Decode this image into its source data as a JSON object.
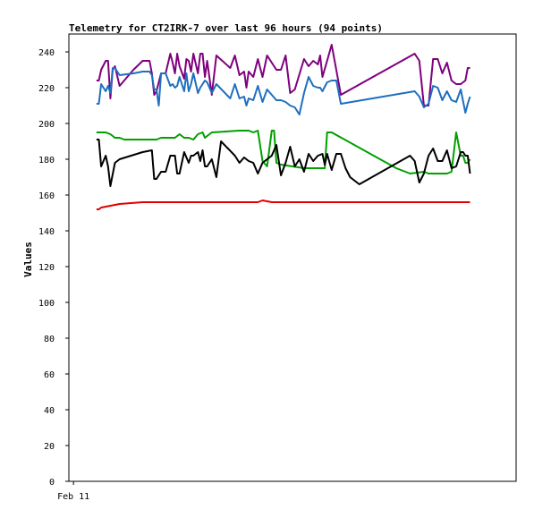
{
  "chart_data": {
    "type": "line",
    "title": "Telemetry for CT2IRK-7 over last 96 hours (94 points)",
    "ylabel": "Values",
    "xlabel": "",
    "ylim": [
      0,
      250
    ],
    "yticks": [
      0,
      20,
      40,
      60,
      80,
      100,
      120,
      140,
      160,
      180,
      200,
      220,
      240
    ],
    "xticks": [
      {
        "label": "Feb 11",
        "x": 0
      }
    ],
    "xlim": [
      -1,
      96
    ],
    "grid": false,
    "series": [
      {
        "color": "#7f007f",
        "points": [
          [
            5,
            224
          ],
          [
            5.5,
            224
          ],
          [
            6,
            230
          ],
          [
            7,
            235
          ],
          [
            7.5,
            235
          ],
          [
            8,
            214
          ],
          [
            8.5,
            230
          ],
          [
            9,
            232
          ],
          [
            10,
            221
          ],
          [
            13,
            230
          ],
          [
            15,
            235
          ],
          [
            16.5,
            235
          ],
          [
            17,
            228
          ],
          [
            17.5,
            216
          ],
          [
            18,
            218
          ],
          [
            19,
            228
          ],
          [
            20,
            228
          ],
          [
            21,
            239
          ],
          [
            21.5,
            234
          ],
          [
            22,
            228
          ],
          [
            22.5,
            239
          ],
          [
            23,
            232
          ],
          [
            24,
            225
          ],
          [
            24.5,
            236
          ],
          [
            25,
            235
          ],
          [
            25.5,
            229
          ],
          [
            26,
            239
          ],
          [
            27,
            228
          ],
          [
            27.5,
            239
          ],
          [
            28,
            239
          ],
          [
            28.5,
            226
          ],
          [
            29,
            235
          ],
          [
            30,
            216
          ],
          [
            31,
            238
          ],
          [
            34,
            231
          ],
          [
            35,
            238
          ],
          [
            36,
            227
          ],
          [
            37,
            229
          ],
          [
            37.5,
            220
          ],
          [
            38,
            229
          ],
          [
            39,
            226
          ],
          [
            40,
            236
          ],
          [
            41,
            226
          ],
          [
            42,
            238
          ],
          [
            44,
            230
          ],
          [
            45,
            230
          ],
          [
            46,
            238
          ],
          [
            47,
            217
          ],
          [
            48,
            219
          ],
          [
            50,
            236
          ],
          [
            51,
            232
          ],
          [
            52,
            235
          ],
          [
            53,
            233
          ],
          [
            53.5,
            238
          ],
          [
            54,
            226
          ],
          [
            55,
            235
          ],
          [
            56,
            244
          ],
          [
            58,
            216
          ],
          [
            74,
            239
          ],
          [
            75,
            235
          ],
          [
            76,
            210
          ],
          [
            77,
            210
          ],
          [
            78,
            236
          ],
          [
            79,
            236
          ],
          [
            80,
            228
          ],
          [
            81,
            234
          ],
          [
            82,
            224
          ],
          [
            83,
            222
          ],
          [
            84,
            222
          ],
          [
            84.5,
            223
          ],
          [
            85,
            224
          ],
          [
            85.5,
            231
          ],
          [
            86,
            231
          ]
        ]
      },
      {
        "color": "#1f6fbf",
        "points": [
          [
            5,
            211
          ],
          [
            5.5,
            211
          ],
          [
            6,
            222
          ],
          [
            7,
            218
          ],
          [
            7.5,
            221
          ],
          [
            8,
            217
          ],
          [
            8.5,
            231
          ],
          [
            9,
            231
          ],
          [
            10,
            227
          ],
          [
            13,
            228
          ],
          [
            15,
            229
          ],
          [
            16.5,
            229
          ],
          [
            17,
            227
          ],
          [
            17.5,
            219
          ],
          [
            18,
            219
          ],
          [
            18.5,
            210
          ],
          [
            19,
            228
          ],
          [
            20,
            228
          ],
          [
            21,
            221
          ],
          [
            21.5,
            222
          ],
          [
            22,
            220
          ],
          [
            22.5,
            221
          ],
          [
            23,
            226
          ],
          [
            24,
            218
          ],
          [
            24.5,
            228
          ],
          [
            25,
            218
          ],
          [
            25.5,
            222
          ],
          [
            26,
            228
          ],
          [
            27,
            217
          ],
          [
            27.5,
            220
          ],
          [
            28,
            222
          ],
          [
            28.5,
            224
          ],
          [
            29,
            223
          ],
          [
            30,
            217
          ],
          [
            31,
            222
          ],
          [
            34,
            214
          ],
          [
            35,
            222
          ],
          [
            36,
            214
          ],
          [
            37,
            215
          ],
          [
            37.5,
            210
          ],
          [
            38,
            214
          ],
          [
            39,
            213
          ],
          [
            40,
            221
          ],
          [
            41,
            212
          ],
          [
            42,
            219
          ],
          [
            44,
            213
          ],
          [
            45,
            213
          ],
          [
            46,
            212
          ],
          [
            47,
            210
          ],
          [
            48,
            209
          ],
          [
            49,
            205
          ],
          [
            50,
            217
          ],
          [
            51,
            226
          ],
          [
            52,
            221
          ],
          [
            53,
            220
          ],
          [
            53.5,
            220
          ],
          [
            54,
            218
          ],
          [
            55,
            223
          ],
          [
            56,
            224
          ],
          [
            57,
            224
          ],
          [
            58,
            211
          ],
          [
            74,
            218
          ],
          [
            75,
            215
          ],
          [
            76,
            209
          ],
          [
            77,
            211
          ],
          [
            78,
            221
          ],
          [
            79,
            220
          ],
          [
            80,
            213
          ],
          [
            81,
            218
          ],
          [
            82,
            213
          ],
          [
            83,
            212
          ],
          [
            84,
            219
          ],
          [
            85,
            206
          ],
          [
            85.5,
            211
          ],
          [
            86,
            215
          ]
        ]
      },
      {
        "color": "#00a000",
        "points": [
          [
            5,
            195
          ],
          [
            7,
            195
          ],
          [
            8,
            194
          ],
          [
            8.5,
            193
          ],
          [
            9,
            192
          ],
          [
            10,
            192
          ],
          [
            11,
            191
          ],
          [
            17,
            191
          ],
          [
            18,
            191
          ],
          [
            19,
            192
          ],
          [
            22,
            192
          ],
          [
            23,
            194
          ],
          [
            24,
            192
          ],
          [
            25,
            192
          ],
          [
            26,
            191
          ],
          [
            27,
            194
          ],
          [
            28,
            195
          ],
          [
            28.5,
            192
          ],
          [
            29,
            193
          ],
          [
            30,
            195
          ],
          [
            36,
            196
          ],
          [
            38,
            196
          ],
          [
            39,
            195
          ],
          [
            40,
            196
          ],
          [
            41,
            179
          ],
          [
            42,
            176
          ],
          [
            43,
            196
          ],
          [
            43.5,
            196
          ],
          [
            44,
            178
          ],
          [
            45,
            177
          ],
          [
            50,
            175
          ],
          [
            54,
            175
          ],
          [
            54.5,
            175
          ],
          [
            55,
            195
          ],
          [
            56,
            195
          ],
          [
            70,
            175
          ],
          [
            72,
            173
          ],
          [
            73,
            172
          ],
          [
            76,
            173
          ],
          [
            77,
            172
          ],
          [
            78,
            172
          ],
          [
            79,
            172
          ],
          [
            80,
            172
          ],
          [
            80.5,
            172
          ],
          [
            81,
            172
          ],
          [
            82,
            173
          ],
          [
            83,
            195
          ],
          [
            84,
            182
          ],
          [
            84.5,
            182
          ],
          [
            85,
            178
          ],
          [
            85.5,
            178
          ],
          [
            86,
            180
          ]
        ]
      },
      {
        "color": "#000000",
        "points": [
          [
            5,
            191
          ],
          [
            5.5,
            191
          ],
          [
            6,
            176
          ],
          [
            7,
            182
          ],
          [
            7.5,
            176
          ],
          [
            8,
            165
          ],
          [
            9,
            178
          ],
          [
            10,
            180
          ],
          [
            15,
            184
          ],
          [
            17,
            185
          ],
          [
            17.5,
            169
          ],
          [
            18,
            169
          ],
          [
            19,
            173
          ],
          [
            20,
            173
          ],
          [
            21,
            182
          ],
          [
            22,
            182
          ],
          [
            22.5,
            172
          ],
          [
            23,
            172
          ],
          [
            24,
            184
          ],
          [
            25,
            178
          ],
          [
            25.5,
            182
          ],
          [
            26,
            182
          ],
          [
            27,
            184
          ],
          [
            27.5,
            179
          ],
          [
            28,
            185
          ],
          [
            28.5,
            176
          ],
          [
            29,
            176
          ],
          [
            30,
            180
          ],
          [
            31,
            170
          ],
          [
            32,
            190
          ],
          [
            35,
            182
          ],
          [
            36,
            178
          ],
          [
            37,
            181
          ],
          [
            38,
            179
          ],
          [
            39,
            178
          ],
          [
            40,
            172
          ],
          [
            41,
            178
          ],
          [
            42,
            180
          ],
          [
            43,
            182
          ],
          [
            44,
            188
          ],
          [
            45,
            171
          ],
          [
            46,
            178
          ],
          [
            47,
            187
          ],
          [
            48,
            176
          ],
          [
            49,
            180
          ],
          [
            50,
            173
          ],
          [
            51,
            183
          ],
          [
            52,
            179
          ],
          [
            53,
            182
          ],
          [
            54,
            183
          ],
          [
            54.5,
            177
          ],
          [
            55,
            183
          ],
          [
            56,
            174
          ],
          [
            57,
            183
          ],
          [
            58,
            183
          ],
          [
            59,
            175
          ],
          [
            60,
            170
          ],
          [
            62,
            166
          ],
          [
            73,
            182
          ],
          [
            74,
            179
          ],
          [
            75,
            167
          ],
          [
            76,
            172
          ],
          [
            77,
            182
          ],
          [
            78,
            186
          ],
          [
            79,
            179
          ],
          [
            80,
            179
          ],
          [
            81,
            185
          ],
          [
            82,
            175
          ],
          [
            83,
            176
          ],
          [
            84,
            184
          ],
          [
            84.5,
            184
          ],
          [
            85,
            182
          ],
          [
            85.5,
            182
          ],
          [
            86,
            172
          ]
        ]
      },
      {
        "color": "#e00000",
        "points": [
          [
            5,
            152
          ],
          [
            5.5,
            152
          ],
          [
            6,
            153
          ],
          [
            8,
            154
          ],
          [
            10,
            155
          ],
          [
            15,
            156
          ],
          [
            20,
            156
          ],
          [
            30,
            156
          ],
          [
            40,
            156
          ],
          [
            41,
            157
          ],
          [
            43,
            156
          ],
          [
            50,
            156
          ],
          [
            60,
            156
          ],
          [
            70,
            156
          ],
          [
            80,
            156
          ],
          [
            86,
            156
          ]
        ]
      }
    ]
  }
}
